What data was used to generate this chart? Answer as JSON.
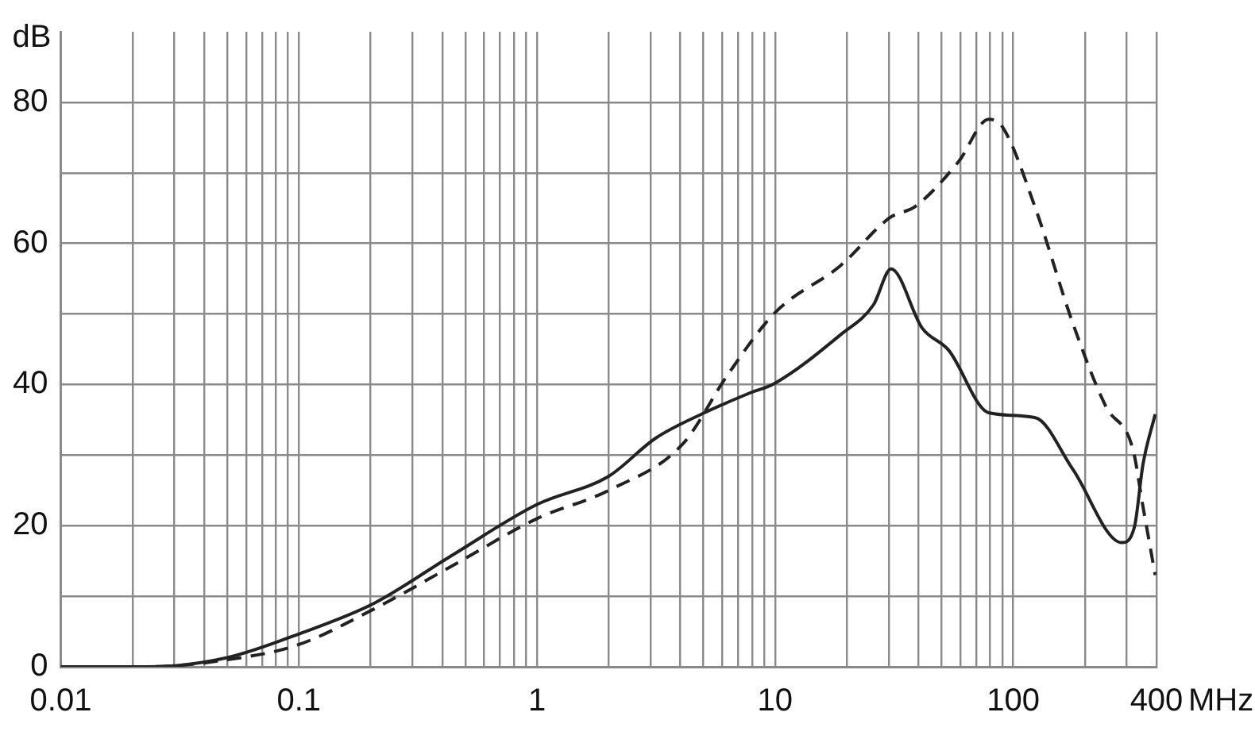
{
  "chart_data": {
    "type": "line",
    "xlabel": "MHz",
    "ylabel": "dB",
    "log": "x",
    "grid": true,
    "xlim": [
      0.01,
      400
    ],
    "xticks": [
      0.01,
      {
        "value": 0.02,
        "label": null
      },
      {
        "value": 0.03,
        "label": null
      },
      {
        "value": 0.04,
        "label": null
      },
      {
        "value": 0.05,
        "label": null
      },
      {
        "value": 0.06,
        "label": null
      },
      {
        "value": 0.07,
        "label": null
      },
      {
        "value": 0.08,
        "label": null
      },
      {
        "value": 0.09,
        "label": null
      },
      0.1,
      {
        "value": 0.2,
        "label": null
      },
      {
        "value": 0.3,
        "label": null
      },
      {
        "value": 0.4,
        "label": null
      },
      {
        "value": 0.5,
        "label": null
      },
      {
        "value": 0.6,
        "label": null
      },
      {
        "value": 0.7,
        "label": null
      },
      {
        "value": 0.8,
        "label": null
      },
      {
        "value": 0.9,
        "label": null
      },
      1,
      {
        "value": 2,
        "label": null
      },
      {
        "value": 3,
        "label": null
      },
      {
        "value": 4,
        "label": null
      },
      {
        "value": 5,
        "label": null
      },
      {
        "value": 6,
        "label": null
      },
      {
        "value": 7,
        "label": null
      },
      {
        "value": 8,
        "label": null
      },
      {
        "value": 9,
        "label": null
      },
      10,
      {
        "value": 20,
        "label": null
      },
      {
        "value": 30,
        "label": null
      },
      {
        "value": 40,
        "label": null
      },
      {
        "value": 50,
        "label": null
      },
      {
        "value": 60,
        "label": null
      },
      {
        "value": 70,
        "label": null
      },
      {
        "value": 80,
        "label": null
      },
      {
        "value": 90,
        "label": null
      },
      100,
      {
        "value": 200,
        "label": null
      },
      {
        "value": 300,
        "label": null
      },
      400
    ],
    "ylim": [
      0,
      90
    ],
    "yticks": [
      0,
      {
        "value": 10,
        "label": null
      },
      20,
      {
        "value": 30,
        "label": null
      },
      40,
      {
        "value": 50,
        "label": null
      },
      60,
      {
        "value": 70,
        "label": null
      },
      80
    ],
    "series": [
      {
        "color": "#222222",
        "line_style": "solid",
        "x": [
          0.01,
          0.023,
          0.05,
          0.099,
          0.207,
          0.435,
          1,
          2,
          3.15,
          5.05,
          7.7,
          10,
          18.9,
          25.9,
          30.7,
          41.5,
          53.5,
          79,
          124,
          178,
          286,
          323,
          351,
          395
        ],
        "values": [
          0,
          0,
          1.3,
          4.6,
          9,
          15.7,
          23,
          27,
          32.4,
          36,
          38.7,
          40.2,
          47.1,
          51.3,
          56.4,
          48,
          44.9,
          36,
          35.3,
          28,
          17.6,
          19.8,
          28.7,
          35.8
        ]
      },
      {
        "color": "#222222",
        "line_style": "dashed",
        "x": [
          0.01,
          0.023,
          0.05,
          0.099,
          0.207,
          0.435,
          1,
          2,
          4.1,
          6.3,
          10,
          18.9,
          30.2,
          39,
          59,
          79,
          90.6,
          124,
          178,
          245,
          318,
          351,
          395
        ],
        "values": [
          0,
          0,
          1,
          3.1,
          8.2,
          14.2,
          21,
          25,
          31.6,
          41.3,
          50.2,
          56.9,
          63.6,
          65.3,
          71.6,
          77.6,
          76.4,
          65,
          48.7,
          36.9,
          30.9,
          22.7,
          13
        ]
      }
    ]
  }
}
